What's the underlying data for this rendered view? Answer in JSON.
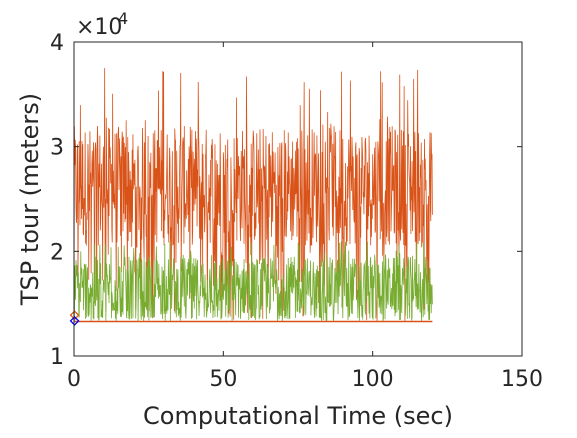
{
  "chart_data": {
    "type": "line",
    "title": "",
    "xlabel": "Computational Time (sec)",
    "ylabel": "TSP tour (meters)",
    "xlim": [
      0,
      150
    ],
    "ylim": [
      10000,
      40000
    ],
    "xticks": [
      0,
      50,
      100,
      150
    ],
    "xtick_labels": [
      "0",
      "50",
      "100",
      "150"
    ],
    "yticks": [
      10000,
      20000,
      30000,
      40000
    ],
    "ytick_labels": [
      "1",
      "2",
      "3",
      "4"
    ],
    "y_exponent": {
      "prefix": "×10",
      "power": "4"
    },
    "grid": false,
    "box": true,
    "series": [
      {
        "color": "#D95319",
        "x_range": [
          0,
          120
        ],
        "y_min": 13300,
        "y_typical_band": [
          20500,
          32000
        ],
        "y_peak": 38200,
        "notes": "highly noisy trace"
      },
      {
        "color": "#77AC30",
        "x_range": [
          0,
          120
        ],
        "y_min": 13300,
        "y_typical_band": [
          13800,
          19500
        ],
        "y_peak": 21000,
        "notes": "highly noisy trace"
      },
      {
        "color": "#D95319",
        "x_range": [
          0,
          120
        ],
        "values": [
          13300
        ],
        "notes": "flat best-so-far line"
      }
    ],
    "markers": [
      {
        "shape": "diamond",
        "color": "#D95319",
        "x": 0.2,
        "y": 13900
      },
      {
        "shape": "diamond",
        "color": "#0000FF",
        "x": 0.2,
        "y": 13350
      }
    ]
  }
}
